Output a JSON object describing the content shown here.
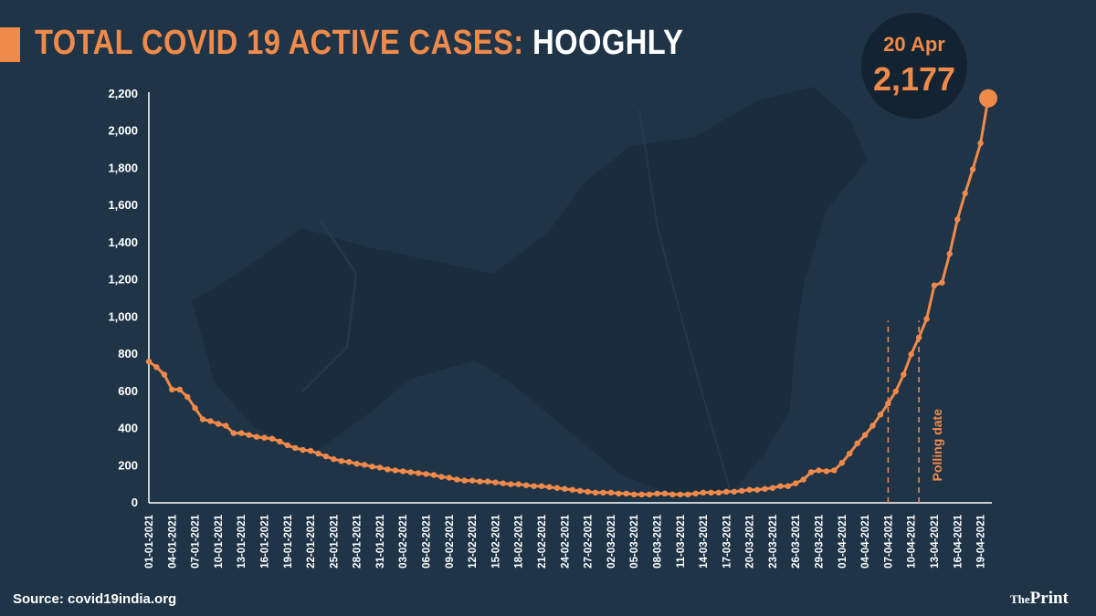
{
  "header": {
    "title_main": "TOTAL COVID 19 ACTIVE CASES:",
    "title_location": "HOOGHLY"
  },
  "callout": {
    "date": "20 Apr",
    "value": "2,177"
  },
  "footer": {
    "source": "Source: covid19india.org",
    "brand_prefix": "The",
    "brand_name": "Print"
  },
  "colors": {
    "background": "#1f3447",
    "accent": "#f08a4b",
    "text": "#ffffff",
    "bubble": "#142331"
  },
  "chart_data": {
    "type": "line",
    "title": "TOTAL COVID 19 ACTIVE CASES: HOOGHLY",
    "xlabel": "",
    "ylabel": "",
    "ylim": [
      0,
      2200
    ],
    "yticks": [
      0,
      200,
      400,
      600,
      800,
      1000,
      1200,
      1400,
      1600,
      1800,
      2000,
      2200
    ],
    "ytick_labels": [
      "0",
      "200",
      "400",
      "600",
      "800",
      "1,000",
      "1,200",
      "1,400",
      "1,600",
      "1,800",
      "2,000",
      "2,200"
    ],
    "grid": false,
    "xtick_labels": [
      "01-01-2021",
      "04-01-2021",
      "07-01-2021",
      "10-01-2021",
      "13-01-2021",
      "16-01-2021",
      "19-01-2021",
      "22-01-2021",
      "25-01-2021",
      "28-01-2021",
      "31-01-2021",
      "03-02-2021",
      "06-02-2021",
      "09-02-2021",
      "12-02-2021",
      "15-02-2021",
      "18-02-2021",
      "21-02-2021",
      "24-02-2021",
      "27-02-2021",
      "02-03-2021",
      "05-03-2021",
      "08-03-2021",
      "11-03-2021",
      "14-03-2021",
      "17-03-2021",
      "20-03-2021",
      "23-03-2021",
      "26-03-2021",
      "29-03-2021",
      "01-04-2021",
      "04-04-2021",
      "07-04-2021",
      "10-04-2021",
      "13-04-2021",
      "16-04-2021",
      "19-04-2021"
    ],
    "x_start": "01-01-2021",
    "x_end": "20-04-2021",
    "values": [
      760,
      730,
      690,
      610,
      610,
      570,
      510,
      450,
      440,
      425,
      415,
      375,
      375,
      365,
      355,
      350,
      345,
      330,
      310,
      295,
      285,
      280,
      265,
      250,
      235,
      225,
      220,
      210,
      205,
      195,
      190,
      180,
      175,
      170,
      165,
      160,
      155,
      150,
      140,
      135,
      125,
      120,
      120,
      115,
      115,
      110,
      105,
      100,
      100,
      95,
      90,
      90,
      85,
      80,
      75,
      70,
      65,
      60,
      55,
      55,
      55,
      50,
      50,
      45,
      45,
      45,
      50,
      50,
      45,
      45,
      45,
      50,
      55,
      55,
      55,
      60,
      60,
      65,
      70,
      70,
      75,
      80,
      90,
      90,
      105,
      125,
      165,
      175,
      170,
      175,
      215,
      265,
      320,
      365,
      415,
      475,
      535,
      600,
      690,
      800,
      890,
      990,
      1170,
      1185,
      1340,
      1525,
      1665,
      1795,
      1935,
      2177
    ],
    "annotations": [
      {
        "type": "vline",
        "x": "07-04-2021"
      },
      {
        "type": "vline",
        "x": "11-04-2021",
        "label": "Polling date"
      }
    ]
  }
}
